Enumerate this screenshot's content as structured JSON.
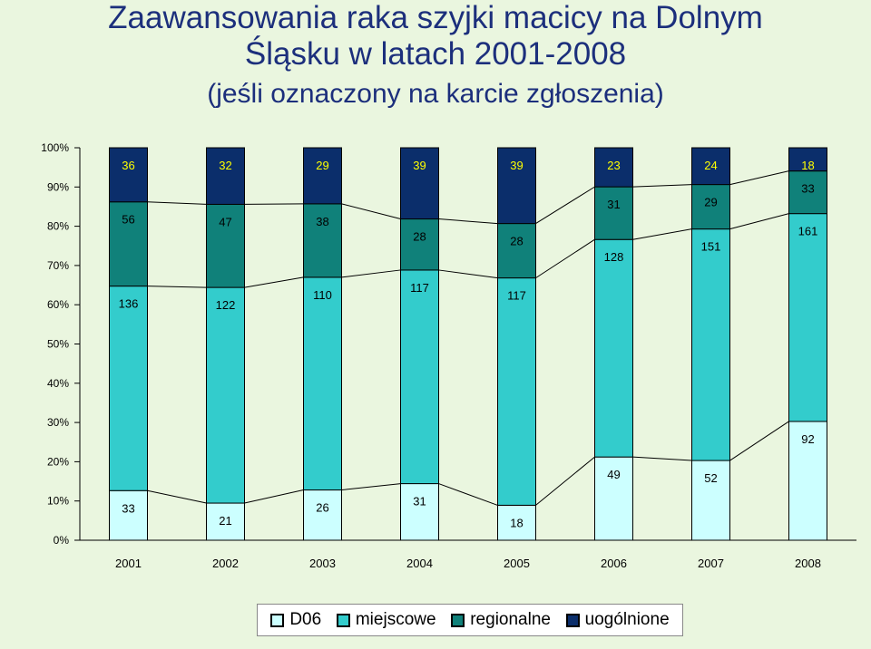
{
  "title": {
    "line1": "Zaawansowania raka szyjki macicy na Dolnym",
    "line2": "Śląsku  w latach 2001-2008",
    "line3": "(jeśli oznaczony na karcie zgłoszenia)"
  },
  "colors": {
    "D06": "#ccffff",
    "miejscowe": "#33cccc",
    "regionalne": "#10817a",
    "uogolnione": "#0b2e6b",
    "label_light": "#ffff00",
    "label_dark": "#000000"
  },
  "legend": [
    {
      "key": "D06",
      "label": "D06"
    },
    {
      "key": "miejscowe",
      "label": "miejscowe"
    },
    {
      "key": "regionalne",
      "label": "regionalne"
    },
    {
      "key": "uogolnione",
      "label": "uogólnione"
    }
  ],
  "chart_data": {
    "type": "bar",
    "stacked": "percent",
    "categories": [
      "2001",
      "2002",
      "2003",
      "2004",
      "2005",
      "2006",
      "2007",
      "2008"
    ],
    "yticks": [
      "0%",
      "10%",
      "20%",
      "30%",
      "40%",
      "50%",
      "60%",
      "70%",
      "80%",
      "90%",
      "100%"
    ],
    "ylim": [
      0,
      100
    ],
    "series": [
      {
        "name": "D06",
        "values": [
          33,
          21,
          26,
          31,
          18,
          49,
          52,
          92
        ]
      },
      {
        "name": "miejscowe",
        "values": [
          136,
          122,
          110,
          117,
          117,
          128,
          151,
          161
        ]
      },
      {
        "name": "regionalne",
        "values": [
          56,
          47,
          38,
          28,
          28,
          31,
          29,
          33
        ]
      },
      {
        "name": "uogólnione",
        "values": [
          36,
          32,
          29,
          39,
          39,
          23,
          24,
          18
        ]
      }
    ],
    "legend_position": "bottom",
    "grid": false
  }
}
